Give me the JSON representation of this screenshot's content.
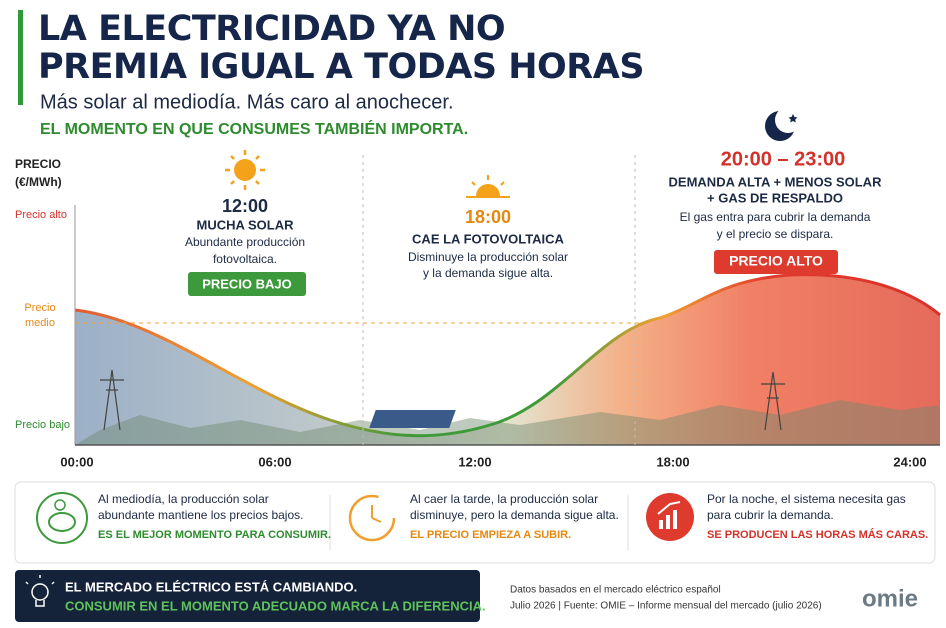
{
  "header": {
    "title_lines": [
      "LA ELECTRICIDAD YA NO",
      "PREMIA IGUAL A TODAS HORAS"
    ],
    "subtitle": "Más solar al mediodía. Más caro al anochecer.",
    "tagline": "EL MOMENTO EN QUE CONSUMES TAMBIÉN IMPORTA."
  },
  "axis": {
    "y_title": [
      "PRECIO",
      "(€/MWh)"
    ],
    "y_labels": {
      "high": "Precio alto",
      "mid": [
        "Precio",
        "medio"
      ],
      "low": "Precio bajo"
    },
    "x_ticks": [
      "00:00",
      "06:00",
      "12:00",
      "18:00",
      "24:00"
    ]
  },
  "annotations": [
    {
      "time": "12:00",
      "heading": "MUCHA SOLAR",
      "text": [
        "Abundante producción",
        "fotovoltaica."
      ],
      "badge": "PRECIO BAJO"
    },
    {
      "time": "18:00",
      "heading": "CAE LA FOTOVOLTAICA",
      "text": [
        "Disminuye la producción solar",
        "y la demanda sigue alta."
      ]
    },
    {
      "time": "20:00 – 23:00",
      "heading": [
        "DEMANDA ALTA + MENOS SOLAR",
        "+ GAS DE RESPALDO"
      ],
      "text": [
        "El gas entra para cubrir la demanda",
        "y el precio se dispara."
      ],
      "badge": "PRECIO ALTO"
    }
  ],
  "cards": [
    {
      "text": [
        "Al mediodía, la producción solar",
        "abundante mantiene los precios bajos."
      ],
      "highlight": "ES EL MEJOR MOMENTO PARA CONSUMIR."
    },
    {
      "text": [
        "Al caer la tarde, la producción solar",
        "disminuye, pero la demanda sigue alta."
      ],
      "highlight": "EL PRECIO EMPIEZA A SUBIR."
    },
    {
      "text": [
        "Por la noche, el sistema necesita gas",
        "para cubrir la demanda."
      ],
      "highlight": "SE PRODUCEN LAS HORAS MÁS CARAS."
    }
  ],
  "footer": {
    "lines": [
      "EL MERCADO ELÉCTRICO ESTÁ CAMBIANDO.",
      "CONSUMIR EN EL MOMENTO ADECUADO MARCA LA DIFERENCIA."
    ]
  },
  "source": [
    "Datos basados en el mercado eléctrico español",
    "Julio 2026  |  Fuente: OMIE – Informe mensual del mercado (julio 2026)"
  ],
  "logo": "omie"
}
